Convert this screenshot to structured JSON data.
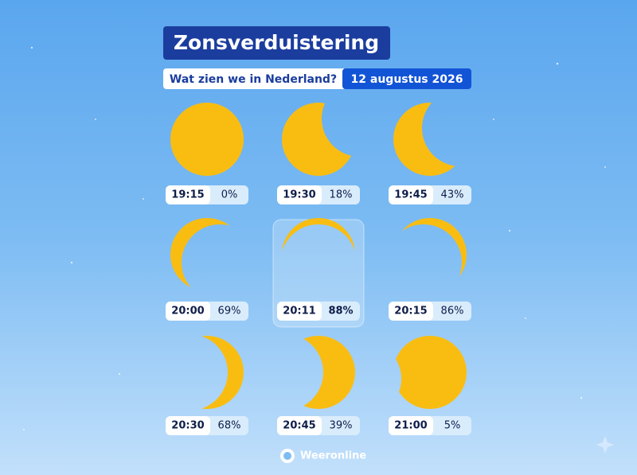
{
  "title": "Zonsverduistering",
  "subtitle": "Wat zien we in Nederland?",
  "date": "12 augustus 2026",
  "panels": [
    {
      "time": "19:15",
      "coverage": "0%"
    },
    {
      "time": "19:30",
      "coverage": "18%"
    },
    {
      "time": "19:45",
      "coverage": "43%"
    },
    {
      "time": "20:00",
      "coverage": "69%"
    },
    {
      "time": "20:11",
      "coverage": "88%"
    },
    {
      "time": "20:15",
      "coverage": "86%"
    },
    {
      "time": "20:30",
      "coverage": "68%"
    },
    {
      "time": "20:45",
      "coverage": "39%"
    },
    {
      "time": "21:00",
      "coverage": "5%"
    }
  ],
  "logo": "Weeronline"
}
